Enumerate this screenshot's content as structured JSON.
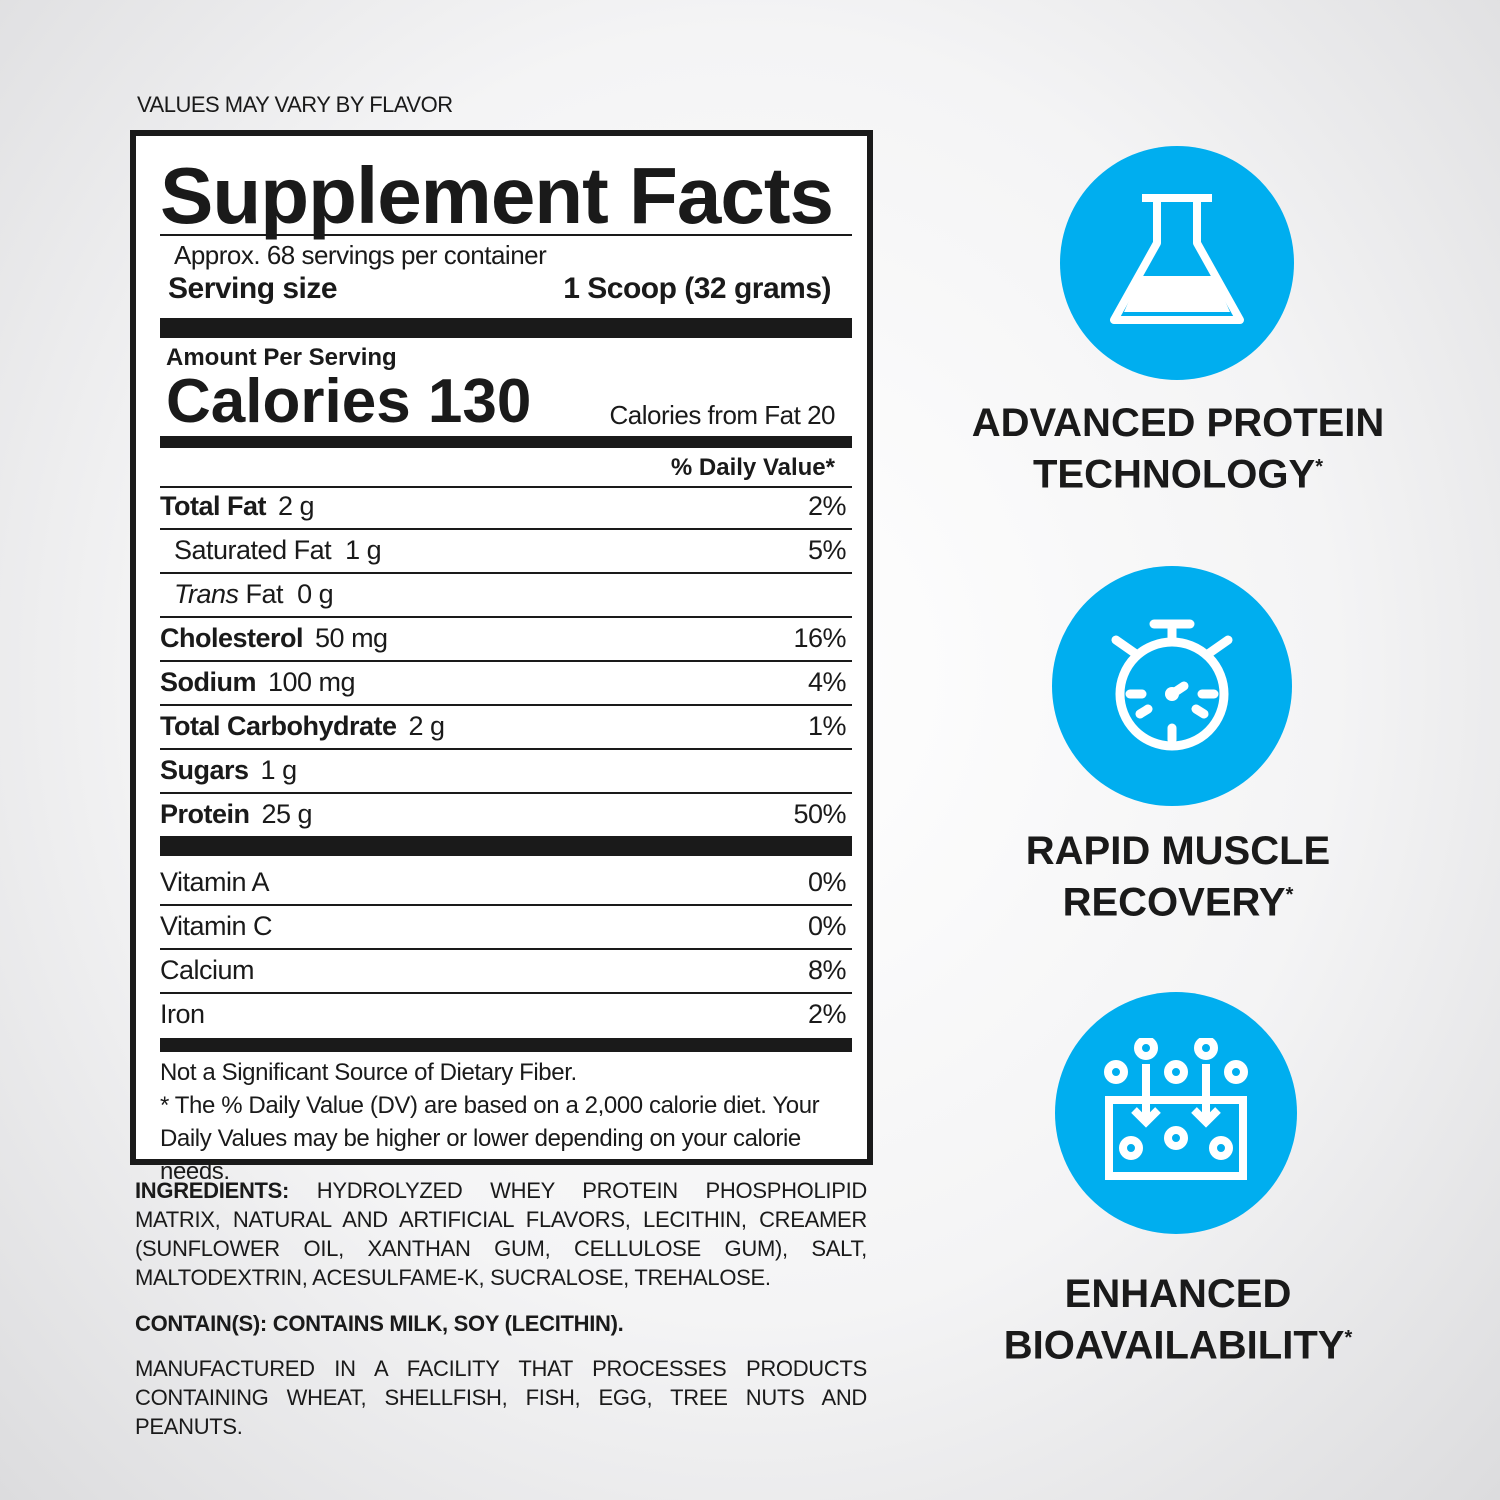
{
  "top_note": "VALUES MAY VARY BY FLAVOR",
  "label": {
    "title": "Supplement Facts",
    "servings": "Approx. 68 servings per container",
    "serving_size_label": "Serving size",
    "serving_size_value": "1 Scoop (32 grams)",
    "amount_per_serving": "Amount Per Serving",
    "calories_label": "Calories",
    "calories_value": "130",
    "calories_from_fat": "Calories from Fat 20",
    "dv_header": "% Daily Value*",
    "nutrients": [
      {
        "name": "Total Fat",
        "amount": "2 g",
        "dv": "2%"
      },
      {
        "name": "Saturated Fat",
        "amount": "1 g",
        "dv": "5%"
      },
      {
        "name_italic": "Trans",
        "name": "Fat",
        "amount": "0 g",
        "dv": ""
      },
      {
        "name": "Cholesterol",
        "amount": "50 mg",
        "dv": "16%"
      },
      {
        "name": "Sodium",
        "amount": "100 mg",
        "dv": "4%"
      },
      {
        "name": "Total Carbohydrate",
        "amount": "2 g",
        "dv": "1%"
      },
      {
        "name": "Sugars",
        "amount": "1 g",
        "dv": ""
      },
      {
        "name": "Protein",
        "amount": "25 g",
        "dv": "50%"
      }
    ],
    "vitamins": [
      {
        "name": "Vitamin A",
        "dv": "0%"
      },
      {
        "name": "Vitamin C",
        "dv": "0%"
      },
      {
        "name": "Calcium",
        "dv": "8%"
      },
      {
        "name": "Iron",
        "dv": "2%"
      }
    ],
    "footnote_1": "Not a Significant Source of Dietary Fiber.",
    "footnote_2": "* The % Daily Value (DV) are based on a 2,000 calorie diet. Your Daily Values may be higher or lower depending on your calorie needs."
  },
  "ingredients": {
    "label": "INGREDIENTS:",
    "text": "HYDROLYZED WHEY PROTEIN PHOSPHOLIPID MATRIX, NATURAL AND ARTIFICIAL FLAVORS, LECITHIN, CREAMER (SUNFLOWER OIL, XANTHAN GUM, CELLULOSE GUM), SALT, MALTODEXTRIN, ACESULFAME-K, SUCRALOSE, TREHALOSE.",
    "contains": "CONTAIN(S): CONTAINS MILK, SOY (LECITHIN).",
    "facility": "MANUFACTURED IN A FACILITY THAT PROCESSES PRODUCTS CONTAINING WHEAT, SHELLFISH, FISH, EGG, TREE NUTS AND PEANUTS."
  },
  "features": [
    {
      "icon": "flask-icon",
      "line1": "ADVANCED PROTEIN",
      "line2": "TECHNOLOGY",
      "mark": "*"
    },
    {
      "icon": "stopwatch-icon",
      "line1": "RAPID MUSCLE",
      "line2": "RECOVERY",
      "mark": "*"
    },
    {
      "icon": "absorption-icon",
      "line1": "ENHANCED",
      "line2": "BIOAVAILABILITY",
      "mark": "*"
    }
  ],
  "colors": {
    "accent": "#00AEEF",
    "text": "#1A1A1A"
  }
}
